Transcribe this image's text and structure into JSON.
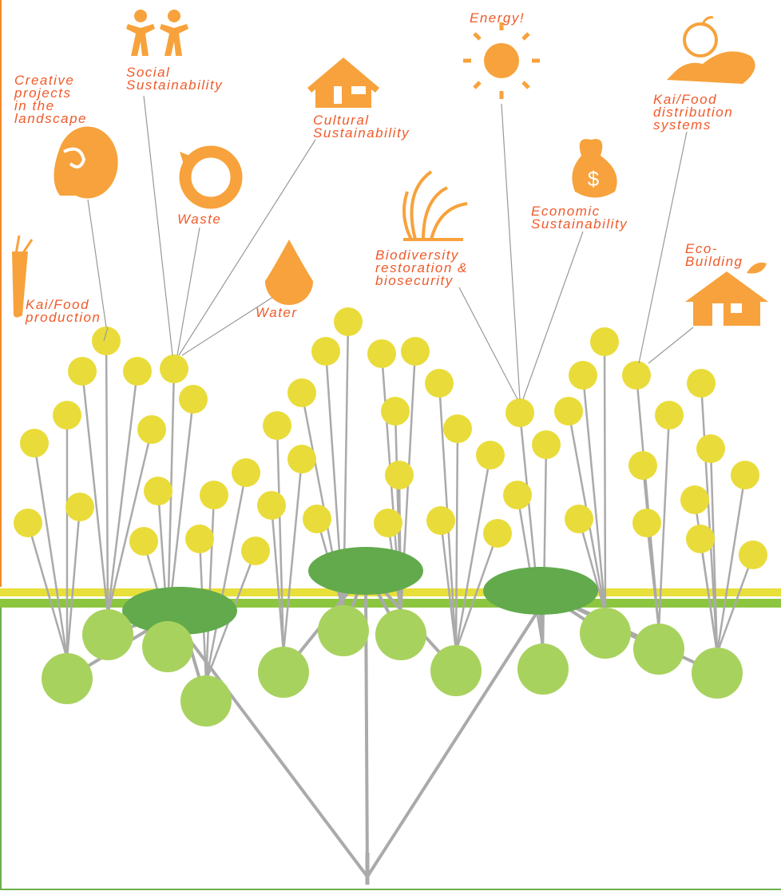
{
  "labels": [
    {
      "lines": [
        "Creative",
        "projects",
        "in the",
        "landscape"
      ]
    },
    {
      "lines": [
        "Social",
        "Sustainability"
      ]
    },
    {
      "lines": [
        "Cultural",
        "Sustainability"
      ]
    },
    {
      "lines": [
        "Energy!"
      ]
    },
    {
      "lines": [
        "Kai/Food",
        "distribution",
        "systems"
      ]
    },
    {
      "lines": [
        "Waste"
      ]
    },
    {
      "lines": [
        "Economic",
        "Sustainability"
      ]
    },
    {
      "lines": [
        "Biodiversity",
        "restoration &",
        "biosecurity"
      ]
    },
    {
      "lines": [
        "Eco-",
        "Building"
      ]
    },
    {
      "lines": [
        "Kai/Food",
        "production"
      ]
    },
    {
      "lines": [
        "Water"
      ]
    }
  ]
}
